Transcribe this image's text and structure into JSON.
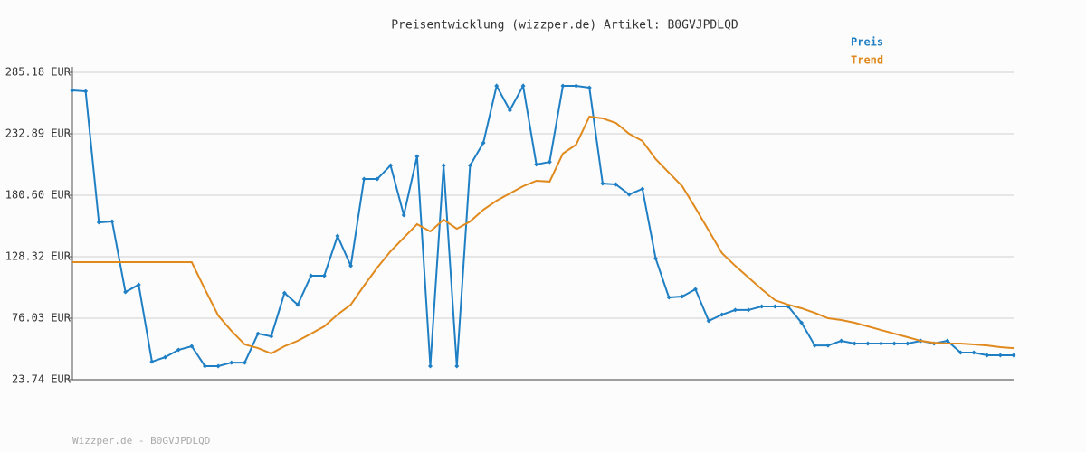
{
  "chart_data": {
    "type": "line",
    "title": "Preisentwicklung (wizzper.de) Artikel: B0GVJPDLQD",
    "footer": "Wizzper.de - B0GVJPDLQD",
    "ylim": [
      23.74,
      285.18
    ],
    "yticks": [
      {
        "value": 23.74,
        "label": "23.74 EUR"
      },
      {
        "value": 76.03,
        "label": "76.03 EUR"
      },
      {
        "value": 128.32,
        "label": "128.32 EUR"
      },
      {
        "value": 180.6,
        "label": "180.60 EUR"
      },
      {
        "value": 232.89,
        "label": "232.89 EUR"
      },
      {
        "value": 285.18,
        "label": "285.18 EUR"
      }
    ],
    "grid": true,
    "series": [
      {
        "name": "Preis",
        "color": "#1f7fc4",
        "markers": true,
        "values": [
          269.8,
          269.0,
          157.5,
          158.3,
          98.3,
          104.5,
          39.1,
          42.9,
          49.1,
          52.2,
          35.3,
          35.3,
          38.3,
          38.3,
          62.9,
          60.6,
          97.5,
          87.5,
          112.2,
          112.2,
          146.0,
          120.6,
          194.4,
          194.4,
          206.0,
          163.7,
          213.7,
          35.3,
          206.0,
          35.3,
          206.0,
          225.2,
          273.6,
          252.9,
          273.6,
          206.8,
          209.0,
          273.6,
          273.6,
          272.1,
          190.6,
          189.8,
          181.3,
          186.0,
          126.8,
          93.7,
          94.5,
          100.6,
          73.7,
          79.1,
          83.0,
          83.0,
          86.0,
          86.0,
          86.0,
          72.2,
          52.9,
          52.9,
          56.8,
          54.5,
          54.5,
          54.5,
          54.5,
          54.5,
          56.8,
          54.5,
          56.8,
          46.8,
          46.8,
          44.5,
          44.5,
          44.5
        ]
      },
      {
        "name": "Trend",
        "color": "#e08a1e",
        "markers": false,
        "values": [
          123.7,
          123.7,
          123.7,
          123.7,
          123.7,
          123.7,
          123.7,
          123.7,
          123.7,
          123.7,
          100.6,
          78.3,
          65.2,
          53.7,
          50.6,
          46.0,
          52.2,
          56.8,
          62.9,
          69.1,
          79.1,
          87.5,
          103.7,
          119.1,
          132.9,
          144.5,
          156.0,
          149.8,
          159.8,
          152.1,
          158.3,
          168.3,
          176.0,
          182.1,
          188.3,
          192.9,
          192.2,
          216.0,
          223.7,
          247.5,
          246.0,
          242.1,
          232.9,
          226.7,
          211.4,
          199.8,
          188.3,
          169.8,
          150.6,
          131.4,
          120.6,
          110.6,
          100.6,
          91.4,
          87.5,
          84.5,
          80.6,
          76.0,
          74.5,
          72.2,
          69.1,
          66.0,
          62.9,
          59.9,
          56.8,
          55.2,
          54.5,
          54.5,
          53.7,
          52.9,
          51.4,
          50.6
        ]
      }
    ]
  }
}
